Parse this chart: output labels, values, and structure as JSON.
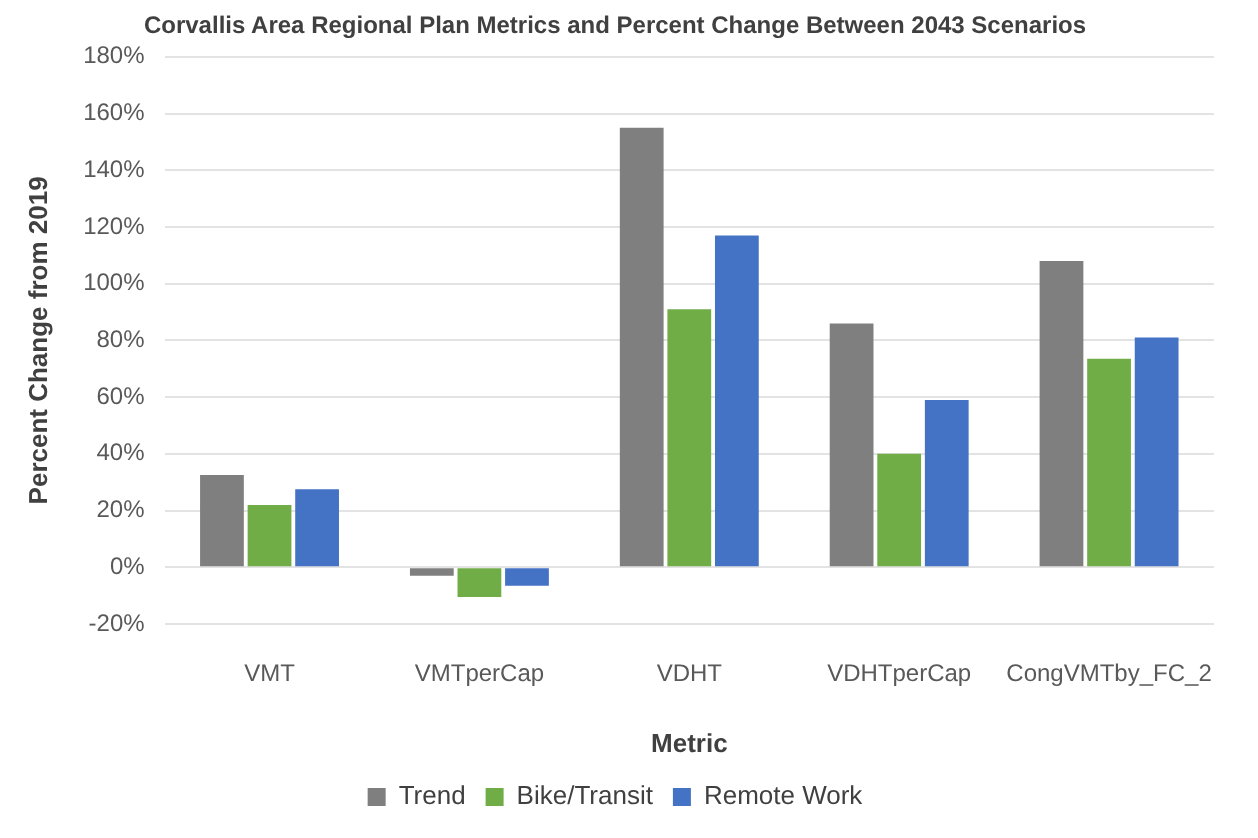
{
  "chart_data": {
    "type": "bar",
    "title": "Corvallis Area Regional Plan Metrics and Percent Change Between 2043 Scenarios",
    "xlabel": "Metric",
    "ylabel": "Percent Change from 2019",
    "categories": [
      "VMT",
      "VMTperCap",
      "VDHT",
      "VDHTperCap",
      "CongVMTby_FC_2"
    ],
    "series": [
      {
        "name": "Trend",
        "color": "#7f7f7f",
        "values": [
          32.5,
          -3,
          155,
          86,
          108
        ]
      },
      {
        "name": "Bike/Transit",
        "color": "#70ad47",
        "values": [
          22,
          -10.5,
          91,
          40,
          73.5
        ]
      },
      {
        "name": "Remote Work",
        "color": "#4472c4",
        "values": [
          27.5,
          -6.5,
          117,
          59,
          81
        ]
      }
    ],
    "ylim": [
      -20,
      180
    ],
    "yticks": [
      {
        "value": -20,
        "label": "-20%"
      },
      {
        "value": 0,
        "label": "0%"
      },
      {
        "value": 20,
        "label": "20%"
      },
      {
        "value": 40,
        "label": "40%"
      },
      {
        "value": 60,
        "label": "60%"
      },
      {
        "value": 80,
        "label": "80%"
      },
      {
        "value": 100,
        "label": "100%"
      },
      {
        "value": 120,
        "label": "120%"
      },
      {
        "value": 140,
        "label": "140%"
      },
      {
        "value": 160,
        "label": "160%"
      },
      {
        "value": 180,
        "label": "180%"
      }
    ],
    "grid": "y",
    "legend": "bottom"
  }
}
